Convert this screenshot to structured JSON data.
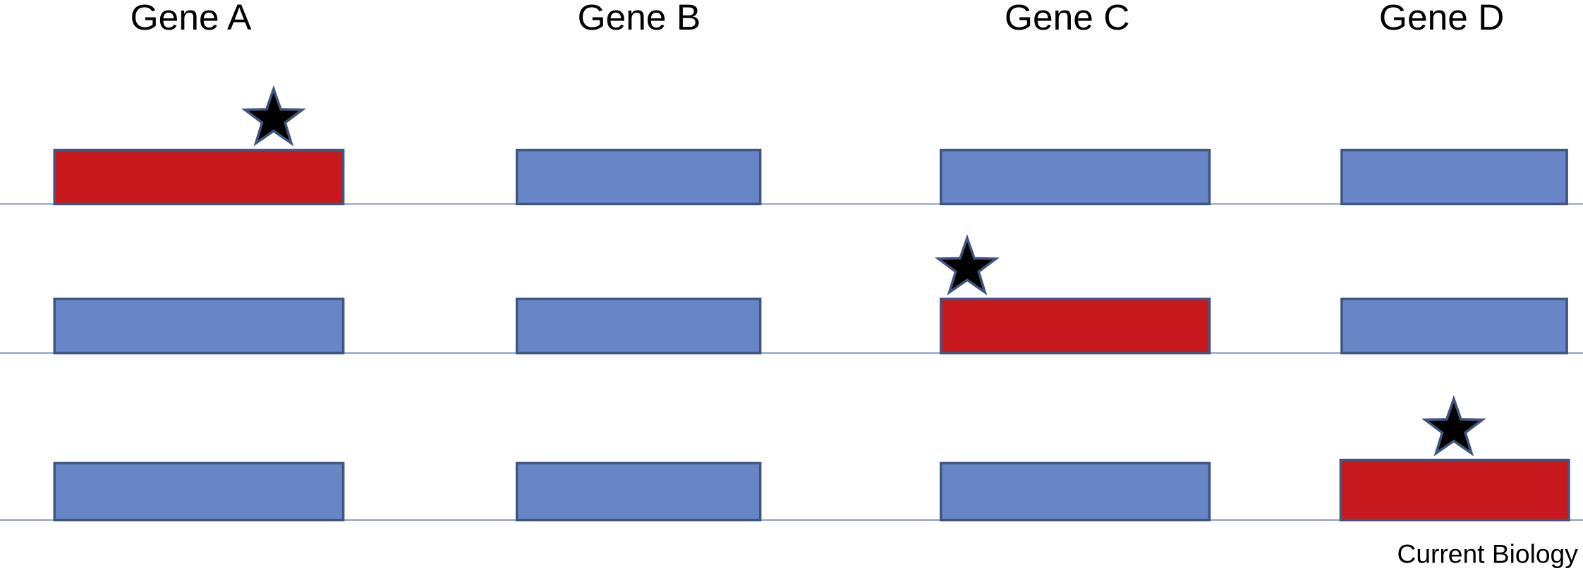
{
  "columns": [
    {
      "label": "Gene A"
    },
    {
      "label": "Gene B"
    },
    {
      "label": "Gene C"
    },
    {
      "label": "Gene D"
    }
  ],
  "credit": "Current Biology"
}
